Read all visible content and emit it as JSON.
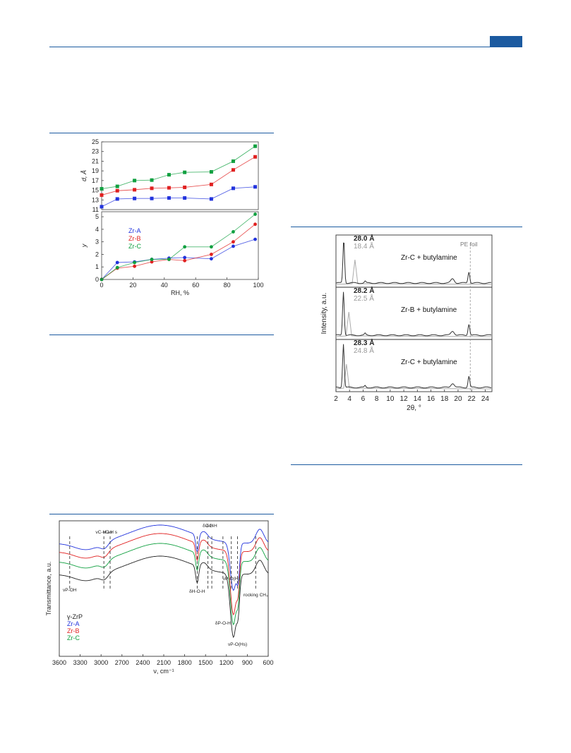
{
  "page": {
    "accent_color": "#1b5aa0"
  },
  "chart_data": [
    {
      "id": "fig_d_y_vs_rh",
      "type": "line",
      "panels": [
        {
          "ylabel": "d, Å",
          "yticks": [
            "11",
            "13",
            "15",
            "17",
            "19",
            "21",
            "23",
            "25"
          ],
          "ylim": [
            11,
            25
          ],
          "series": [
            {
              "name": "Zr-A",
              "color": "#2233dd",
              "x": [
                0,
                10,
                21,
                32,
                43,
                53,
                70,
                84,
                98
              ],
              "y": [
                11.6,
                13.2,
                13.3,
                13.3,
                13.4,
                13.4,
                13.2,
                15.4,
                15.7
              ]
            },
            {
              "name": "Zr-B",
              "color": "#e02020",
              "x": [
                0,
                10,
                21,
                32,
                43,
                53,
                70,
                84,
                98
              ],
              "y": [
                14.0,
                14.9,
                15.1,
                15.4,
                15.5,
                15.6,
                16.2,
                19.2,
                21.9
              ]
            },
            {
              "name": "Zr-C",
              "color": "#10a040",
              "x": [
                0,
                10,
                21,
                32,
                43,
                53,
                70,
                84,
                98
              ],
              "y": [
                15.3,
                15.8,
                17.0,
                17.1,
                18.2,
                18.7,
                18.8,
                21.0,
                24.1
              ]
            }
          ]
        },
        {
          "ylabel": "y",
          "yticks": [
            "0",
            "1",
            "2",
            "3",
            "4",
            "5"
          ],
          "ylim": [
            0,
            5.4
          ],
          "series": [
            {
              "name": "Zr-A",
              "color": "#2233dd",
              "x": [
                0,
                10,
                21,
                32,
                43,
                53,
                70,
                84,
                98
              ],
              "y": [
                0,
                1.35,
                1.4,
                1.6,
                1.7,
                1.75,
                1.65,
                2.65,
                3.2
              ]
            },
            {
              "name": "Zr-B",
              "color": "#e02020",
              "x": [
                0,
                10,
                21,
                32,
                43,
                53,
                70,
                84,
                98
              ],
              "y": [
                0,
                0.9,
                1.05,
                1.4,
                1.6,
                1.5,
                2.0,
                3.0,
                4.4
              ]
            },
            {
              "name": "Zr-C",
              "color": "#10a040",
              "x": [
                0,
                10,
                21,
                32,
                43,
                53,
                70,
                84,
                98
              ],
              "y": [
                0,
                0.95,
                1.35,
                1.6,
                1.6,
                2.6,
                2.6,
                3.8,
                5.2
              ]
            }
          ]
        }
      ],
      "xlabel": "RH, %",
      "xticks": [
        "0",
        "20",
        "40",
        "60",
        "80",
        "100"
      ],
      "xlim": [
        0,
        100
      ],
      "legend": [
        {
          "label": "Zr-A",
          "color": "#2233dd"
        },
        {
          "label": "Zr-B",
          "color": "#e02020"
        },
        {
          "label": "Zr-C",
          "color": "#10a040"
        }
      ]
    },
    {
      "id": "fig_xrd_butylamine",
      "type": "line",
      "xlabel": "2θ, °",
      "ylabel": "Intensity, a.u.",
      "xticks": [
        "2",
        "4",
        "6",
        "8",
        "10",
        "12",
        "14",
        "16",
        "18",
        "20",
        "22",
        "24"
      ],
      "xlim": [
        2,
        25
      ],
      "reference_label": "PE foil",
      "reference_x": 21.8,
      "panels": [
        {
          "label": "Zr-C + butylamine",
          "peak_dark": "28.0 Å",
          "peak_light": "18.4 Å",
          "dark_peak_2theta": 3.15,
          "light_peak_2theta": 4.8
        },
        {
          "label": "Zr-B + butylamine",
          "peak_dark": "28.2 Å",
          "peak_light": "22.5 Å",
          "dark_peak_2theta": 3.1,
          "light_peak_2theta": 3.9
        },
        {
          "label": "Zr-C + butylamine",
          "peak_dark": "28.3 Å",
          "peak_light": "24.8 Å",
          "dark_peak_2theta": 3.1,
          "light_peak_2theta": 3.55
        }
      ]
    },
    {
      "id": "fig_ftir",
      "type": "line",
      "xlabel": "ν, cm⁻¹",
      "ylabel": "Transmittance, a.u.",
      "xticks": [
        "3600",
        "3300",
        "3000",
        "2700",
        "2400",
        "2100",
        "1800",
        "1500",
        "1200",
        "900",
        "600"
      ],
      "xlim": [
        3600,
        600
      ],
      "legend": [
        {
          "label": "γ-ZrP",
          "color": "#222222"
        },
        {
          "label": "Zr-A",
          "color": "#2233dd"
        },
        {
          "label": "Zr-B",
          "color": "#e02020"
        },
        {
          "label": "Zr-C",
          "color": "#10a040"
        }
      ],
      "annotations": [
        {
          "label": "νP-OH",
          "x": 3450
        },
        {
          "label": "νC-H as",
          "x": 2960
        },
        {
          "label": "νC-H s",
          "x": 2870
        },
        {
          "label": "δH-O-H",
          "x": 1620
        },
        {
          "label": "δC-H",
          "x": 1465
        },
        {
          "label": "δC-H",
          "x": 1410
        },
        {
          "label": "δP-O-H",
          "x": 1250
        },
        {
          "label": "νP-O(H)",
          "x": 1130
        },
        {
          "label": "νP-O(Hs)",
          "x": 1040
        },
        {
          "label": "rocking CH₃",
          "x": 780
        }
      ]
    }
  ]
}
